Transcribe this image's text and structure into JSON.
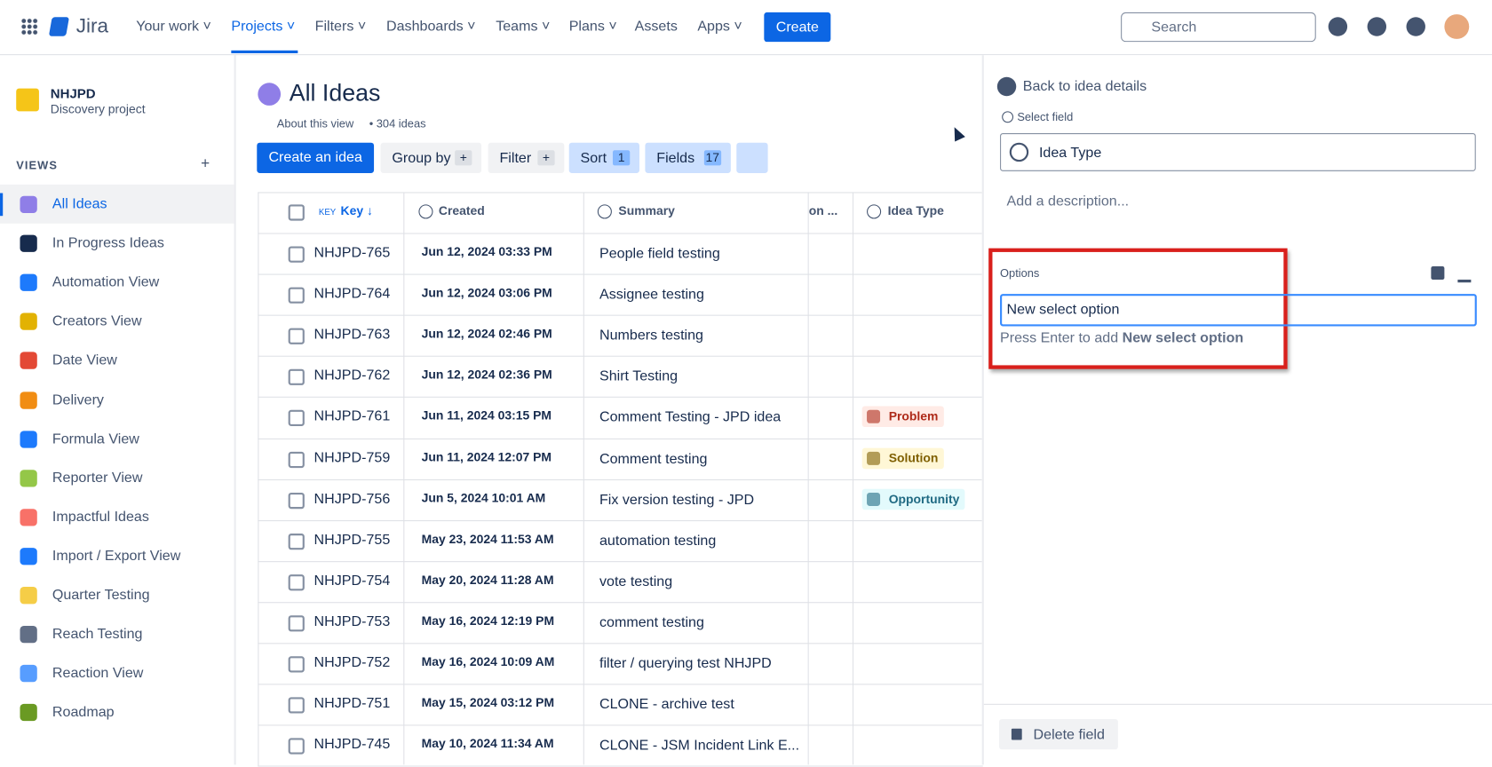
{
  "topnav": {
    "brand": "Jira",
    "items": [
      "Your work",
      "Projects",
      "Filters",
      "Dashboards",
      "Teams",
      "Plans",
      "Assets",
      "Apps"
    ],
    "create": "Create",
    "search": "Search"
  },
  "project": {
    "name": "NHJPD",
    "subtitle": "Discovery project"
  },
  "views": {
    "label": "VIEWS",
    "items": [
      "All Ideas",
      "In Progress Ideas",
      "Automation View",
      "Creators View",
      "Date View",
      "Delivery",
      "Formula View",
      "Reporter View",
      "Impactful Ideas",
      "Import / Export View",
      "Quarter Testing",
      "Reach Testing",
      "Reaction View",
      "Roadmap"
    ]
  },
  "header": {
    "title": "All Ideas",
    "about": "About this view",
    "count": "304 ideas"
  },
  "toolbar": {
    "create": "Create an idea",
    "group": "Group by",
    "filter": "Filter",
    "sort": "Sort",
    "sort_count": "1",
    "fields": "Fields",
    "fields_count": "17"
  },
  "table": {
    "key_tag": "KEY",
    "columns": [
      "Key",
      "Created",
      "Summary",
      "on ...",
      "Idea Type"
    ],
    "rows": [
      {
        "key": "NHJPD-765",
        "created": "Jun 12, 2024 03:33 PM",
        "summary": "People field testing"
      },
      {
        "key": "NHJPD-764",
        "created": "Jun 12, 2024 03:06 PM",
        "summary": "Assignee testing"
      },
      {
        "key": "NHJPD-763",
        "created": "Jun 12, 2024 02:46 PM",
        "summary": "Numbers testing"
      },
      {
        "key": "NHJPD-762",
        "created": "Jun 12, 2024 02:36 PM",
        "summary": "Shirt Testing"
      },
      {
        "key": "NHJPD-761",
        "created": "Jun 11, 2024 03:15 PM",
        "summary": "Comment Testing - JPD idea",
        "type": "Problem"
      },
      {
        "key": "NHJPD-759",
        "created": "Jun 11, 2024 12:07 PM",
        "summary": "Comment testing",
        "type": "Solution"
      },
      {
        "key": "NHJPD-756",
        "created": "Jun 5, 2024 10:01 AM",
        "summary": "Fix version testing - JPD",
        "type": "Opportunity"
      },
      {
        "key": "NHJPD-755",
        "created": "May 23, 2024 11:53 AM",
        "summary": "automation testing"
      },
      {
        "key": "NHJPD-754",
        "created": "May 20, 2024 11:28 AM",
        "summary": "vote testing"
      },
      {
        "key": "NHJPD-753",
        "created": "May 16, 2024 12:19 PM",
        "summary": "comment testing"
      },
      {
        "key": "NHJPD-752",
        "created": "May 16, 2024 10:09 AM",
        "summary": "filter / querying test NHJPD"
      },
      {
        "key": "NHJPD-751",
        "created": "May 15, 2024 03:12 PM",
        "summary": "CLONE - archive test"
      },
      {
        "key": "NHJPD-745",
        "created": "May 10, 2024 11:34 AM",
        "summary": "CLONE - JSM Incident Link E..."
      }
    ]
  },
  "panel": {
    "back": "Back to idea details",
    "select_label": "Select field",
    "field_name": "Idea Type",
    "description": "Add a description...",
    "options_label": "Options",
    "input": "New select option",
    "hint": "Press Enter to add",
    "hint_bold": "New select option",
    "delete": "Delete field"
  }
}
